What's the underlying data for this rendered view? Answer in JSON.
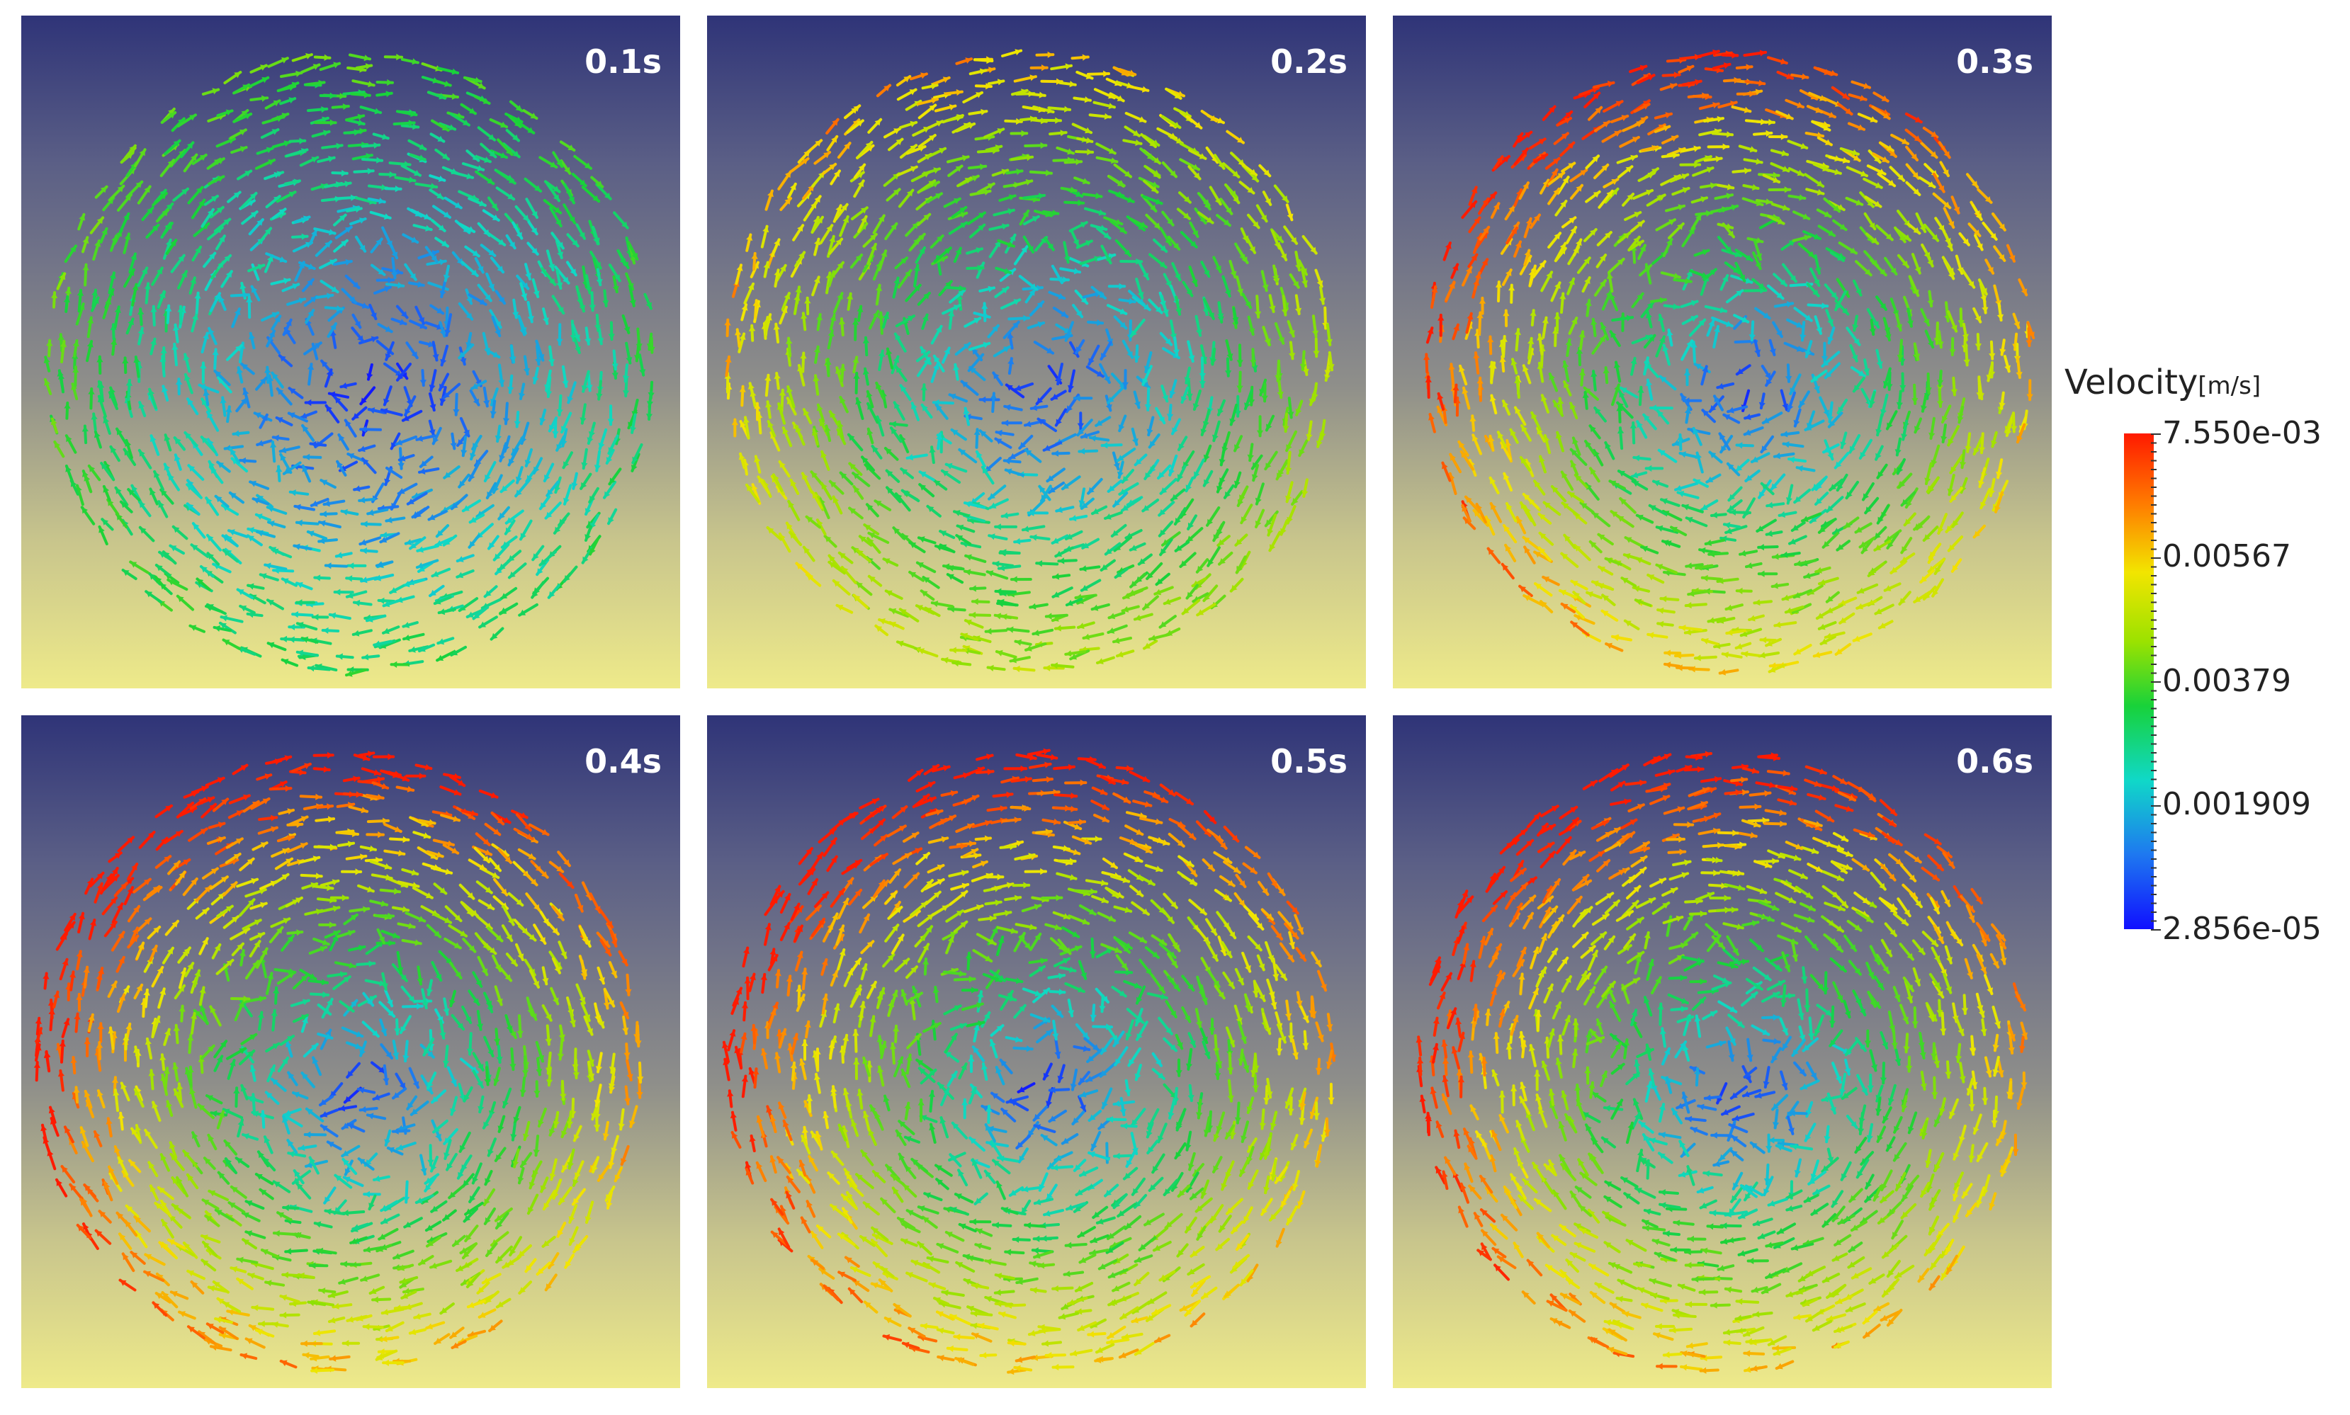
{
  "panels": [
    {
      "time": "0.1s"
    },
    {
      "time": "0.2s"
    },
    {
      "time": "0.3s"
    },
    {
      "time": "0.4s"
    },
    {
      "time": "0.5s"
    },
    {
      "time": "0.6s"
    }
  ],
  "legend": {
    "title": "Velocity",
    "unit": "[m/s]",
    "labels": [
      "7.550e-03",
      "0.00567",
      "0.00379",
      "0.001909",
      "2.856e-05"
    ]
  },
  "colors": {
    "background_top": "#2f3478",
    "background_bottom": "#eeea8a",
    "scale_high": "#ff1a00",
    "scale_mid": "#18d23a",
    "scale_low": "#1010ff"
  }
}
